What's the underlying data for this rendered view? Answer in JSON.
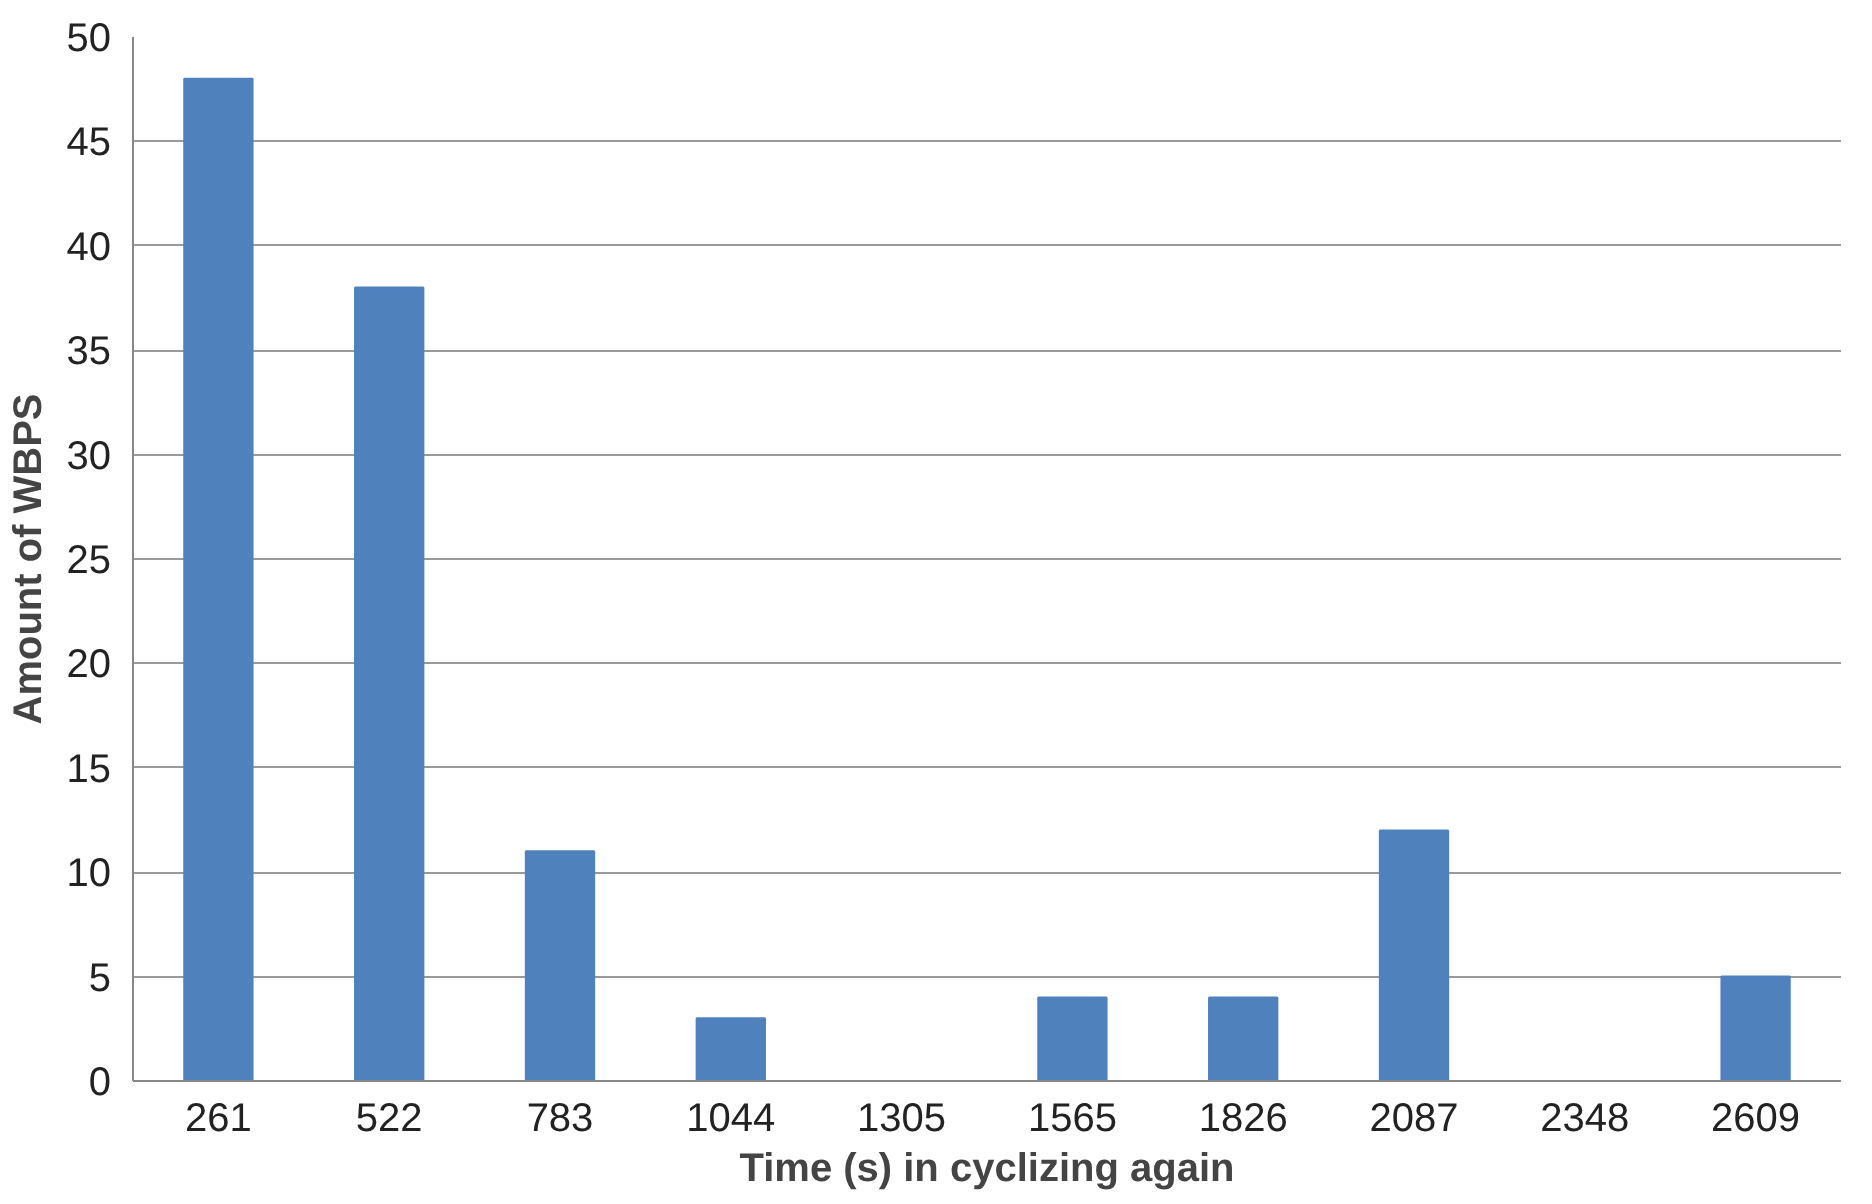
{
  "chart_data": {
    "type": "bar",
    "xlabel": "Time (s) in cyclizing again",
    "ylabel": "Amount of WBPS",
    "categories": [
      "261",
      "522",
      "783",
      "1044",
      "1305",
      "1565",
      "1826",
      "2087",
      "2348",
      "2609"
    ],
    "values": [
      48,
      38,
      11,
      3,
      0,
      4,
      4,
      12,
      0,
      5
    ],
    "color": "#4f81bd",
    "ylim": [
      0,
      50
    ],
    "yticks": [
      0,
      5,
      10,
      15,
      20,
      25,
      30,
      35,
      40,
      45,
      50
    ],
    "grid": "y"
  }
}
